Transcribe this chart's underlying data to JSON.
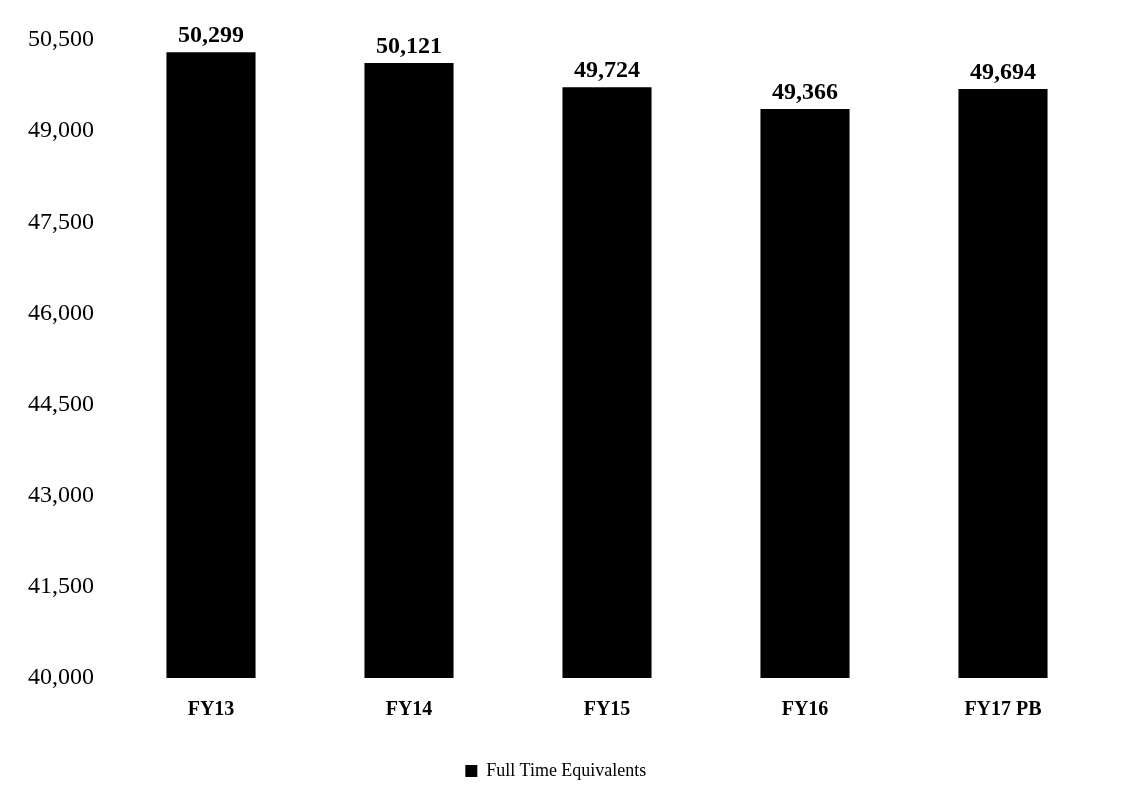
{
  "chart_data": {
    "type": "bar",
    "categories": [
      "FY13",
      "FY14",
      "FY15",
      "FY16",
      "FY17 PB"
    ],
    "series": [
      {
        "name": "Full Time Equivalents",
        "color": "#000000",
        "values": [
          50299,
          50121,
          49724,
          49366,
          49694
        ],
        "value_labels": [
          "50,299",
          "50,121",
          "49,724",
          "49,366",
          "49,694"
        ]
      }
    ],
    "ylim": [
      40000,
      50500
    ],
    "yticks": [
      {
        "value": 40000,
        "label": "40,000"
      },
      {
        "value": 41500,
        "label": "41,500"
      },
      {
        "value": 43000,
        "label": "43,000"
      },
      {
        "value": 44500,
        "label": "44,500"
      },
      {
        "value": 46000,
        "label": "46,000"
      },
      {
        "value": 47500,
        "label": "47,500"
      },
      {
        "value": 49000,
        "label": "49,000"
      },
      {
        "value": 50500,
        "label": "50,500"
      }
    ],
    "grid": false,
    "legend": "bottom"
  }
}
